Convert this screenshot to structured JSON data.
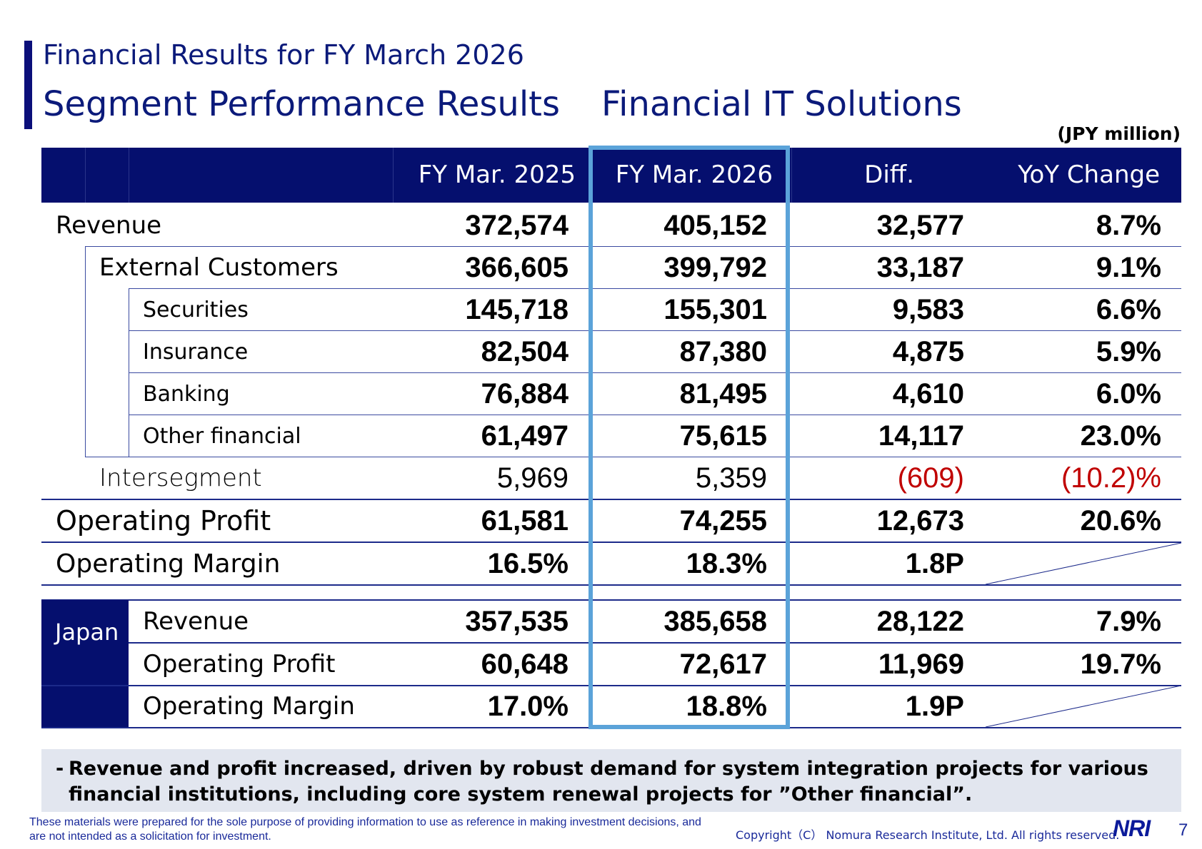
{
  "header": {
    "title": "Financial Results for FY March 2026",
    "subtitle_left": "Segment Performance Results",
    "subtitle_right": "Financial IT Solutions",
    "unit": "(JPY million)"
  },
  "table": {
    "columns": [
      "FY Mar. 2025",
      "FY Mar. 2026",
      "Diff.",
      "YoY Change"
    ],
    "rows": {
      "revenue": {
        "label": "Revenue",
        "v": [
          "372,574",
          "405,152",
          "32,577",
          "8.7%"
        ]
      },
      "external": {
        "label": "External Customers",
        "v": [
          "366,605",
          "399,792",
          "33,187",
          "9.1%"
        ]
      },
      "securities": {
        "label": "Securities",
        "v": [
          "145,718",
          "155,301",
          "9,583",
          "6.6%"
        ]
      },
      "insurance": {
        "label": "Insurance",
        "v": [
          "82,504",
          "87,380",
          "4,875",
          "5.9%"
        ]
      },
      "banking": {
        "label": "Banking",
        "v": [
          "76,884",
          "81,495",
          "4,610",
          "6.0%"
        ]
      },
      "other": {
        "label": "Other financial",
        "v": [
          "61,497",
          "75,615",
          "14,117",
          "23.0%"
        ]
      },
      "intersegment": {
        "label": "Intersegment",
        "v": [
          "5,969",
          "5,359",
          "(609)",
          "(10.2)%"
        ]
      },
      "op_profit": {
        "label": "Operating Profit",
        "v": [
          "61,581",
          "74,255",
          "12,673",
          "20.6%"
        ]
      },
      "op_margin": {
        "label": "Operating Margin",
        "v": [
          "16.5%",
          "18.3%",
          "1.8P"
        ]
      },
      "japan_label": "Japan",
      "japan_revenue": {
        "label": "Revenue",
        "v": [
          "357,535",
          "385,658",
          "28,122",
          "7.9%"
        ]
      },
      "japan_op_profit": {
        "label": "Operating Profit",
        "v": [
          "60,648",
          "72,617",
          "11,969",
          "19.7%"
        ]
      },
      "japan_op_margin": {
        "label": "Operating Margin",
        "v": [
          "17.0%",
          "18.8%",
          "1.9P"
        ]
      }
    }
  },
  "note": {
    "bullet": "-",
    "text": "Revenue and profit increased, driven by robust demand for system integration projects for various financial institutions, including core system renewal projects for ”Other financial”."
  },
  "footer": {
    "disclaimer": "These materials were prepared for the sole purpose of providing information to use as reference in making investment decisions, and are not intended as a solicitation for investment.",
    "copyright": "Copyright（C） Nomura Research Institute, Ltd. All rights reserved.",
    "logo": "NRI",
    "page": "7"
  },
  "colors": {
    "navy": "#050f6e",
    "highlight": "#5ba3d9",
    "negative": "#c00000",
    "note_bg": "#e2e6ef"
  }
}
